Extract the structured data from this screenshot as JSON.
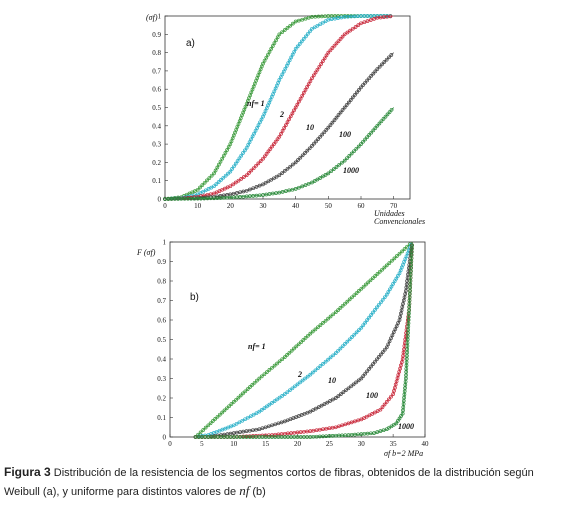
{
  "chart_data": [
    {
      "type": "line",
      "panel_label": "a)",
      "ylabel": "(σf)",
      "xlabel": "Unidades Convencionales",
      "xlim": [
        0,
        75
      ],
      "ylim": [
        0,
        1
      ],
      "x_ticks": [
        "0",
        "10",
        "20",
        "30",
        "40",
        "50",
        "60",
        "70"
      ],
      "y_ticks": [
        "0",
        "0.1",
        "0.2",
        "0.3",
        "0.4",
        "0.5",
        "0.6",
        "0.7",
        "0.8",
        "0.9",
        "1"
      ],
      "grid": false,
      "series": [
        {
          "name": "nf= 1",
          "color": "#3a9a3a",
          "x": [
            0,
            5,
            10,
            15,
            20,
            25,
            30,
            35,
            40,
            45,
            50,
            55,
            60,
            65,
            70
          ],
          "y": [
            0,
            0.01,
            0.05,
            0.14,
            0.3,
            0.52,
            0.74,
            0.9,
            0.97,
            0.995,
            1,
            1,
            1,
            1,
            1
          ]
        },
        {
          "name": "2",
          "color": "#2ab0c8",
          "x": [
            0,
            5,
            10,
            15,
            20,
            25,
            30,
            35,
            40,
            45,
            50,
            55,
            60,
            65,
            70
          ],
          "y": [
            0,
            0.005,
            0.025,
            0.07,
            0.15,
            0.28,
            0.45,
            0.65,
            0.82,
            0.93,
            0.98,
            0.995,
            1,
            1,
            1
          ]
        },
        {
          "name": "10",
          "color": "#c8283a",
          "x": [
            0,
            5,
            10,
            15,
            20,
            25,
            30,
            35,
            40,
            45,
            50,
            55,
            60,
            65,
            70
          ],
          "y": [
            0,
            0.003,
            0.012,
            0.03,
            0.07,
            0.13,
            0.22,
            0.34,
            0.5,
            0.66,
            0.8,
            0.9,
            0.96,
            0.99,
            1
          ]
        },
        {
          "name": "100",
          "color": "#444444",
          "x": [
            0,
            5,
            10,
            15,
            20,
            25,
            30,
            35,
            40,
            45,
            50,
            55,
            60,
            65,
            70
          ],
          "y": [
            0,
            0.002,
            0.005,
            0.012,
            0.025,
            0.045,
            0.08,
            0.13,
            0.2,
            0.29,
            0.39,
            0.5,
            0.61,
            0.71,
            0.8
          ]
        },
        {
          "name": "1000",
          "color": "#2a8a3a",
          "x": [
            0,
            5,
            10,
            15,
            20,
            25,
            30,
            35,
            40,
            45,
            50,
            55,
            60,
            65,
            70
          ],
          "y": [
            0,
            0.001,
            0.002,
            0.004,
            0.008,
            0.014,
            0.022,
            0.035,
            0.055,
            0.09,
            0.14,
            0.21,
            0.3,
            0.4,
            0.5
          ]
        }
      ]
    },
    {
      "type": "line",
      "panel_label": "b)",
      "ylabel": "F (σf)",
      "xlabel": "σf b=2 MPa",
      "xlim": [
        0,
        40
      ],
      "ylim": [
        0,
        1
      ],
      "x_ticks": [
        "0",
        "5",
        "10",
        "15",
        "20",
        "25",
        "30",
        "35",
        "40"
      ],
      "y_ticks": [
        "0",
        "0.1",
        "0.2",
        "0.3",
        "0.4",
        "0.5",
        "0.6",
        "0.7",
        "0.8",
        "0.9",
        "1"
      ],
      "grid": false,
      "series": [
        {
          "name": "nf= 1",
          "color": "#3a9a3a",
          "x": [
            4,
            6,
            10,
            14,
            18,
            22,
            26,
            30,
            34,
            36,
            38
          ],
          "y": [
            0,
            0.06,
            0.18,
            0.3,
            0.41,
            0.53,
            0.64,
            0.76,
            0.88,
            0.94,
            1
          ]
        },
        {
          "name": "2",
          "color": "#2ab0c8",
          "x": [
            4,
            6,
            10,
            14,
            18,
            22,
            26,
            30,
            34,
            36,
            38
          ],
          "y": [
            0,
            0.01,
            0.06,
            0.13,
            0.22,
            0.32,
            0.43,
            0.56,
            0.73,
            0.84,
            1
          ]
        },
        {
          "name": "10",
          "color": "#444444",
          "x": [
            4,
            6,
            10,
            14,
            18,
            22,
            26,
            30,
            34,
            36,
            37,
            38
          ],
          "y": [
            0,
            0,
            0.02,
            0.04,
            0.08,
            0.13,
            0.2,
            0.3,
            0.46,
            0.6,
            0.75,
            1
          ]
        },
        {
          "name": "100",
          "color": "#c8283a",
          "x": [
            4,
            10,
            16,
            22,
            26,
            30,
            33,
            35,
            36.5,
            37.5,
            38
          ],
          "y": [
            0,
            0,
            0.01,
            0.03,
            0.05,
            0.09,
            0.14,
            0.22,
            0.4,
            0.65,
            1
          ]
        },
        {
          "name": "1000",
          "color": "#2a8a3a",
          "x": [
            4,
            14,
            22,
            28,
            32,
            34,
            35.5,
            36.5,
            37,
            37.5,
            38
          ],
          "y": [
            0,
            0,
            0,
            0.01,
            0.02,
            0.04,
            0.07,
            0.12,
            0.3,
            0.65,
            1
          ]
        }
      ]
    }
  ],
  "caption": {
    "figure_label": "Figura 3",
    "text_part1": "Distribución de la resistencia de los segmentos cortos de fibras, obtenidos de la distribución según Weibull (a), y uniforme para distintos valores de",
    "symbol": "nf",
    "text_part2": "(b)"
  }
}
